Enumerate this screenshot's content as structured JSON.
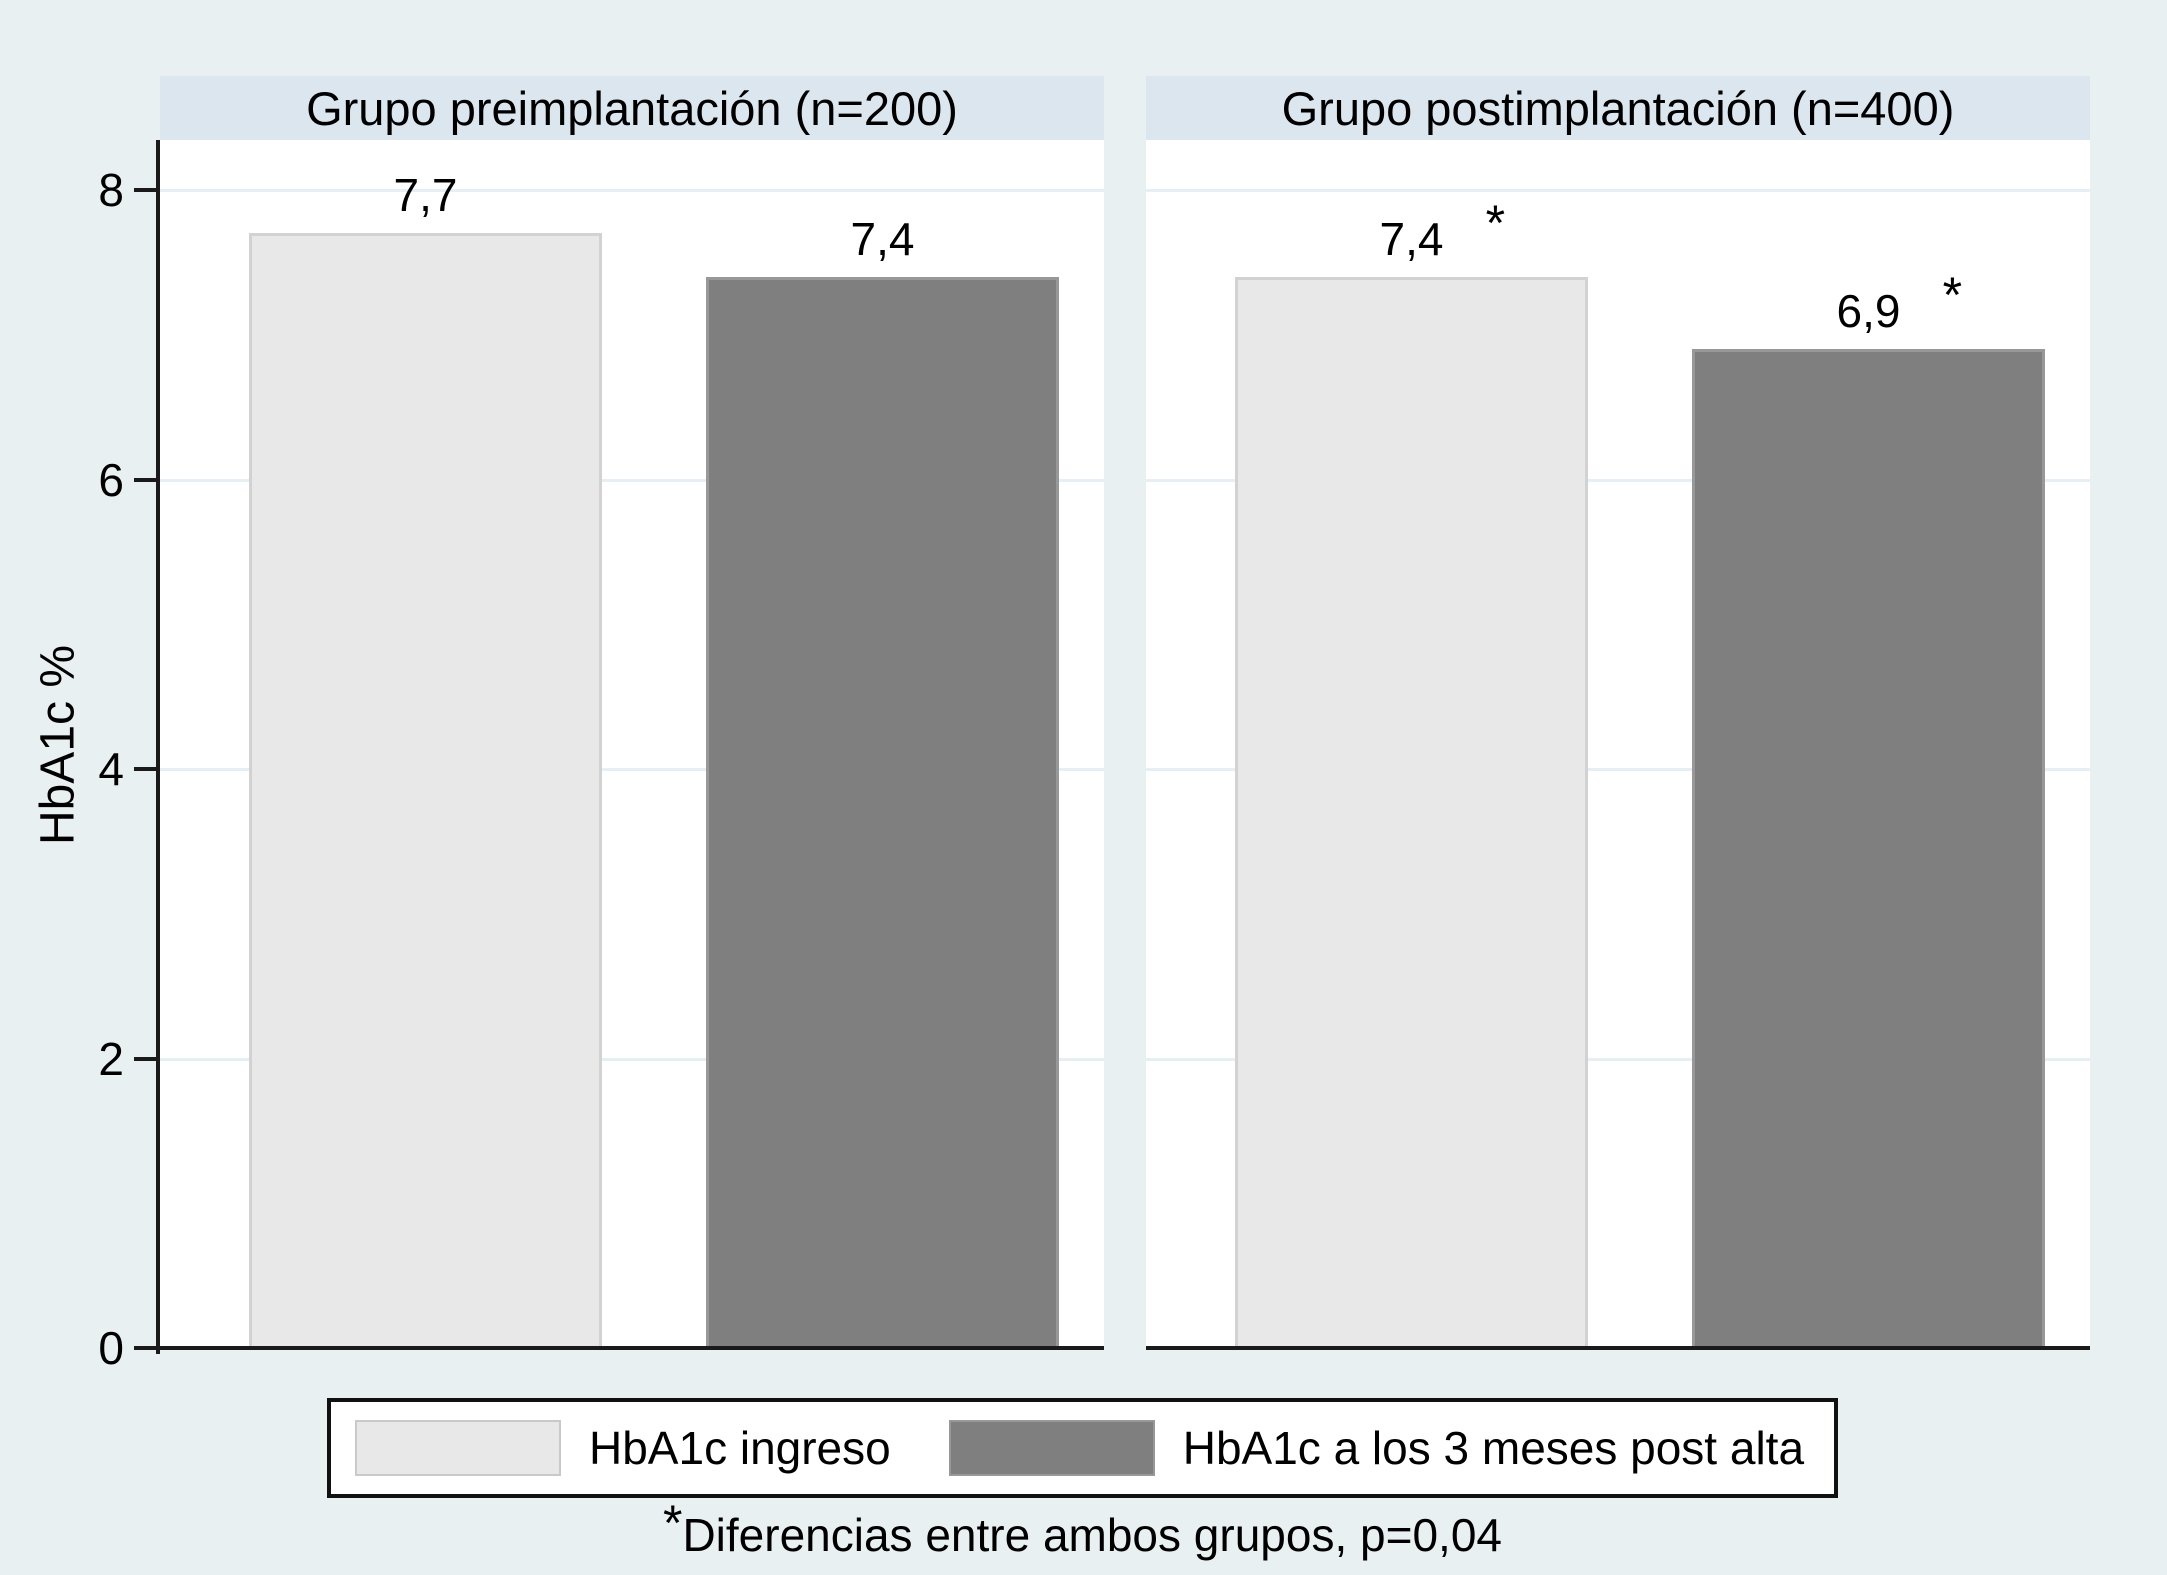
{
  "colors": {
    "page_background": "#e9f0f2",
    "panel_header_background": "#dbe6ee",
    "plot_background": "#ffffff",
    "gridline": "#e6eff3",
    "axis": "#1a1a1a",
    "bar_light_fill": "#e8e8e8",
    "bar_light_border": "#d2d2d2",
    "bar_dark_fill": "#7f7f7f",
    "bar_dark_border": "#989898"
  },
  "chart_data": {
    "type": "bar",
    "ylabel": "HbA1c %",
    "xlabel": "",
    "ylim": [
      0,
      8.35
    ],
    "yticks": [
      {
        "value": 0,
        "label": "0"
      },
      {
        "value": 2,
        "label": "2"
      },
      {
        "value": 4,
        "label": "4"
      },
      {
        "value": 6,
        "label": "6"
      },
      {
        "value": 8,
        "label": "8"
      }
    ],
    "grid_values": [
      2,
      4,
      6,
      8
    ],
    "grid": "on",
    "series": [
      {
        "name": "HbA1c ingreso",
        "style": "light"
      },
      {
        "name": "HbA1c a los 3 meses post alta",
        "style": "dark"
      }
    ],
    "panels": [
      {
        "title": "Grupo preimplantación (n=200)",
        "bars": [
          {
            "series": "HbA1c ingreso",
            "value": 7.7,
            "label": "7,7",
            "starred": false,
            "style": "light"
          },
          {
            "series": "HbA1c a los 3 meses post alta",
            "value": 7.4,
            "label": "7,4",
            "starred": false,
            "style": "dark"
          }
        ]
      },
      {
        "title": "Grupo postimplantación (n=400)",
        "bars": [
          {
            "series": "HbA1c ingreso",
            "value": 7.4,
            "label": "7,4",
            "starred": true,
            "style": "light"
          },
          {
            "series": "HbA1c a los 3 meses post alta",
            "value": 6.9,
            "label": "6,9",
            "starred": true,
            "style": "dark"
          }
        ]
      }
    ],
    "legend": {
      "position": "bottom",
      "entries": [
        "HbA1c ingreso",
        "HbA1c a los 3 meses post alta"
      ]
    },
    "footnote": {
      "star": "*",
      "text": "Diferencias entre ambos grupos, p=0,04"
    },
    "significance_marker": "*"
  }
}
